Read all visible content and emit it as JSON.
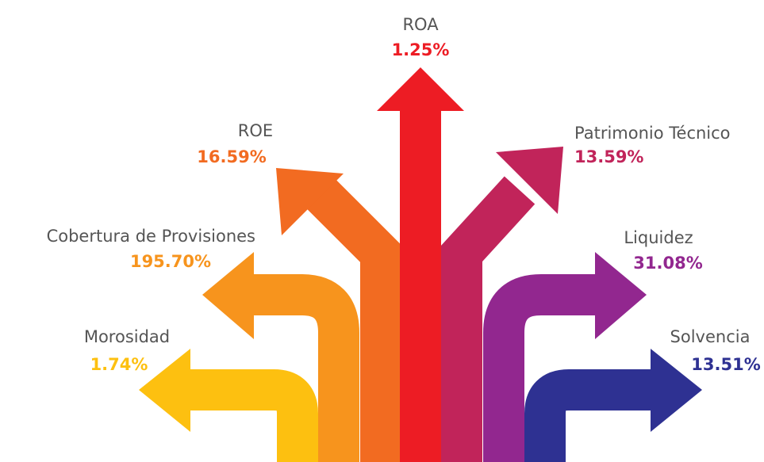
{
  "items": [
    {
      "label": "ROA",
      "value": "1.25%"
    },
    {
      "label": "ROE",
      "value": "16.59%"
    },
    {
      "label": "Patrimonio Técnico",
      "value": "13.59%"
    },
    {
      "label": "Cobertura de Provisiones",
      "value": "195.70%"
    },
    {
      "label": "Liquidez",
      "value": "31.08%"
    },
    {
      "label": "Morosidad",
      "value": "1.74%"
    },
    {
      "label": "Solvencia",
      "value": "13.51%"
    }
  ]
}
